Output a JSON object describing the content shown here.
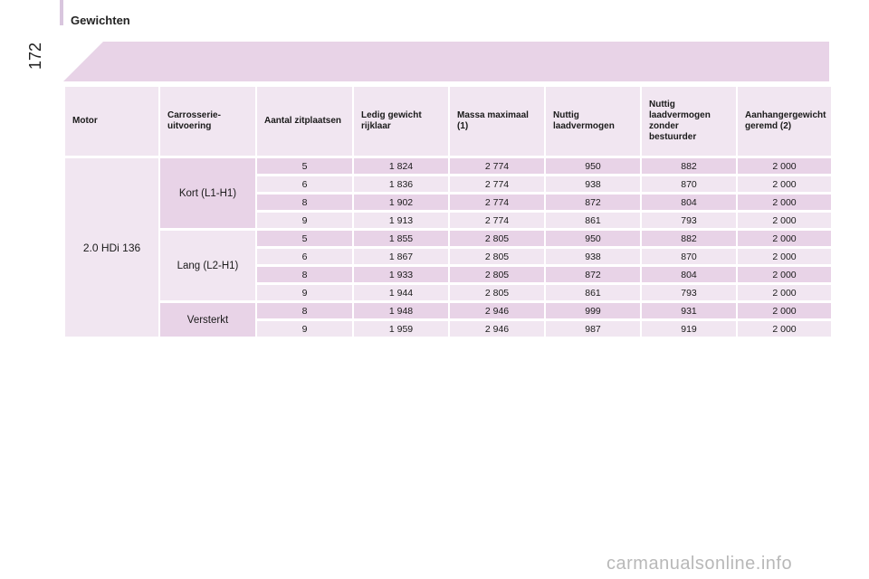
{
  "page": {
    "section_title": "Gewichten",
    "page_number": "172"
  },
  "table": {
    "headers": [
      "Motor",
      "Carrosserie-\nuitvoering",
      "Aantal zitplaatsen",
      "Ledig gewicht\nrijklaar",
      "Massa maximaal\n(1)",
      "Nuttig\nlaadvermogen",
      "Nuttig\nlaadvermogen\nzonder\nbestuurder",
      "Aanhangergewicht\ngeremd (2)"
    ],
    "motor": "2.0 HDi 136",
    "groups": [
      {
        "body": "Kort (L1-H1)",
        "rows": [
          [
            "5",
            "1 824",
            "2 774",
            "950",
            "882",
            "2 000"
          ],
          [
            "6",
            "1 836",
            "2 774",
            "938",
            "870",
            "2 000"
          ],
          [
            "8",
            "1 902",
            "2 774",
            "872",
            "804",
            "2 000"
          ],
          [
            "9",
            "1 913",
            "2 774",
            "861",
            "793",
            "2 000"
          ]
        ]
      },
      {
        "body": "Lang (L2-H1)",
        "rows": [
          [
            "5",
            "1 855",
            "2 805",
            "950",
            "882",
            "2 000"
          ],
          [
            "6",
            "1 867",
            "2 805",
            "938",
            "870",
            "2 000"
          ],
          [
            "8",
            "1 933",
            "2 805",
            "872",
            "804",
            "2 000"
          ],
          [
            "9",
            "1 944",
            "2 805",
            "861",
            "793",
            "2 000"
          ]
        ]
      },
      {
        "body": "Versterkt",
        "rows": [
          [
            "8",
            "1 948",
            "2 946",
            "999",
            "931",
            "2 000"
          ],
          [
            "9",
            "1 959",
            "2 946",
            "987",
            "919",
            "2 000"
          ]
        ]
      }
    ]
  },
  "watermark": "carmanualsonline.info",
  "colors": {
    "dark_row": "#e8d3e7",
    "light_row": "#f1e6f1",
    "accent_bar": "#d9c6de"
  }
}
